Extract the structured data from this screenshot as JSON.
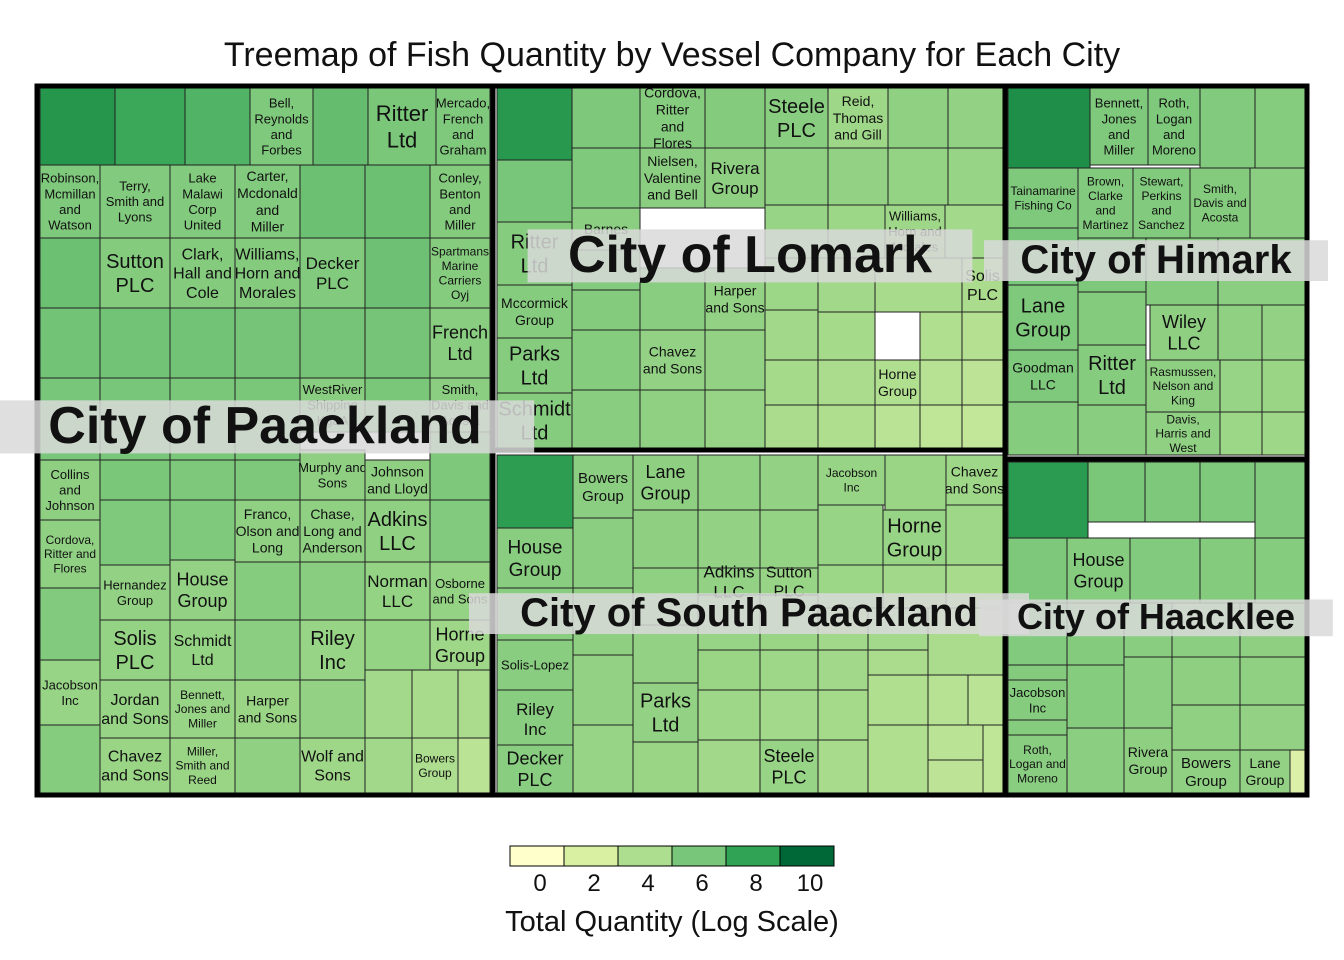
{
  "chart_data": {
    "type": "treemap",
    "title": "Treemap of Fish Quantity by Vessel Company for Each City",
    "legend": {
      "title": "Total Quantity (Log Scale)",
      "ticks": [
        "0",
        "2",
        "4",
        "6",
        "8",
        "10"
      ],
      "position": "bottom",
      "colors": [
        "#ffffcc",
        "#d9f0a3",
        "#addd8e",
        "#78c679",
        "#31a354",
        "#006837"
      ]
    },
    "cities": [
      {
        "name": "City of Paackland",
        "labeled_companies": [
          {
            "name": "Bell, Reynolds and Forbes",
            "log_qty": 6.3
          },
          {
            "name": "Ritter Ltd",
            "log_qty": 6.5
          },
          {
            "name": "Mercado, French and Graham",
            "log_qty": 6.3
          },
          {
            "name": "Robinson, Mcmillan and Watson",
            "log_qty": 6.3
          },
          {
            "name": "Terry, Smith and Lyons",
            "log_qty": 6.2
          },
          {
            "name": "Lake Malawi Corp United",
            "log_qty": 6.2
          },
          {
            "name": "Carter, Mcdonald and Miller",
            "log_qty": 6.2
          },
          {
            "name": "Conley, Benton and Miller",
            "log_qty": 6.1
          },
          {
            "name": "Sutton PLC",
            "log_qty": 6.1
          },
          {
            "name": "Clark, Hall and Cole",
            "log_qty": 6.1
          },
          {
            "name": "Williams, Horn and Morales",
            "log_qty": 6.1
          },
          {
            "name": "Decker PLC",
            "log_qty": 6.2
          },
          {
            "name": "Spartmans Marine Carriers Oyj",
            "log_qty": 6.0
          },
          {
            "name": "French Ltd",
            "log_qty": 5.9
          },
          {
            "name": "WestRiver Shipping KgaA",
            "log_qty": 5.9
          },
          {
            "name": "Smith, Davis and Acosta",
            "log_qty": 5.8
          },
          {
            "name": "Collins and Johnson",
            "log_qty": 5.7
          },
          {
            "name": "Murphy and Sons",
            "log_qty": 5.7
          },
          {
            "name": "Johnson and Lloyd",
            "log_qty": 5.7
          },
          {
            "name": "Franco, Olson and Long",
            "log_qty": 5.6
          },
          {
            "name": "Chase, Long and Anderson",
            "log_qty": 5.6
          },
          {
            "name": "Adkins LLC",
            "log_qty": 5.6
          },
          {
            "name": "Cordova, Ritter and Flores",
            "log_qty": 5.6
          },
          {
            "name": "Hernandez Group",
            "log_qty": 5.5
          },
          {
            "name": "House Group",
            "log_qty": 5.5
          },
          {
            "name": "Norman LLC",
            "log_qty": 5.4
          },
          {
            "name": "Osborne and Sons",
            "log_qty": 5.4
          },
          {
            "name": "Solis PLC",
            "log_qty": 5.4
          },
          {
            "name": "Schmidt Ltd",
            "log_qty": 5.4
          },
          {
            "name": "Riley Inc",
            "log_qty": 5.3
          },
          {
            "name": "Horne Group",
            "log_qty": 5.0
          },
          {
            "name": "Jacobson Inc",
            "log_qty": 5.3
          },
          {
            "name": "Jordan and Sons",
            "log_qty": 5.3
          },
          {
            "name": "Bennett, Jones and Miller",
            "log_qty": 5.3
          },
          {
            "name": "Harper and Sons",
            "log_qty": 5.2
          },
          {
            "name": "Chavez and Sons",
            "log_qty": 5.2
          },
          {
            "name": "Miller, Smith and Reed",
            "log_qty": 5.2
          },
          {
            "name": "Wolf and Sons",
            "log_qty": 5.0
          },
          {
            "name": "Bowers Group",
            "log_qty": 4.4
          }
        ]
      },
      {
        "name": "City of Lomark",
        "labeled_companies": [
          {
            "name": "Cordova, Ritter and Flores",
            "log_qty": 6.0
          },
          {
            "name": "Steele PLC",
            "log_qty": 5.9
          },
          {
            "name": "Reid, Thomas and Gill",
            "log_qty": 5.0
          },
          {
            "name": "Nielsen, Valentine and Bell",
            "log_qty": 5.8
          },
          {
            "name": "Rivera Group",
            "log_qty": 5.7
          },
          {
            "name": "Barnes",
            "log_qty": 5.8
          },
          {
            "name": "Williams, Horn and Morales",
            "log_qty": 5.0
          },
          {
            "name": "Ritter Ltd",
            "log_qty": 6.0
          },
          {
            "name": "Solis PLC",
            "log_qty": 4.5
          },
          {
            "name": "Mccormick Group",
            "log_qty": 6.0
          },
          {
            "name": "Harper and Sons",
            "log_qty": 5.5
          },
          {
            "name": "Parks Ltd",
            "log_qty": 6.0
          },
          {
            "name": "Chavez and Sons",
            "log_qty": 5.5
          },
          {
            "name": "Horne Group",
            "log_qty": 4.2
          },
          {
            "name": "Schmidt Ltd",
            "log_qty": 6.0
          }
        ]
      },
      {
        "name": "City of South Paackland",
        "labeled_companies": [
          {
            "name": "Bowers Group",
            "log_qty": 5.8
          },
          {
            "name": "Lane Group",
            "log_qty": 5.7
          },
          {
            "name": "Jacobson Inc",
            "log_qty": 5.3
          },
          {
            "name": "Chavez and Sons",
            "log_qty": 5.0
          },
          {
            "name": "House Group",
            "log_qty": 5.9
          },
          {
            "name": "Horne Group",
            "log_qty": 5.3
          },
          {
            "name": "Adkins LLC",
            "log_qty": 5.5
          },
          {
            "name": "Sutton PLC",
            "log_qty": 5.3
          },
          {
            "name": "Solis-Lopez",
            "log_qty": 5.9
          },
          {
            "name": "Riley Inc",
            "log_qty": 5.9
          },
          {
            "name": "Parks Ltd",
            "log_qty": 5.5
          },
          {
            "name": "Decker PLC",
            "log_qty": 5.9
          },
          {
            "name": "Steele PLC",
            "log_qty": 5.3
          }
        ]
      },
      {
        "name": "City of Himark",
        "labeled_companies": [
          {
            "name": "Bennett, Jones and Miller",
            "log_qty": 6.3
          },
          {
            "name": "Roth, Logan and Moreno",
            "log_qty": 6.3
          },
          {
            "name": "Tainamarine Fishing Co",
            "log_qty": 6.3
          },
          {
            "name": "Brown, Clarke and Martinez",
            "log_qty": 6.2
          },
          {
            "name": "Stewart, Perkins and Sanchez",
            "log_qty": 6.2
          },
          {
            "name": "Smith, Davis and Acosta",
            "log_qty": 6.1
          },
          {
            "name": "Lane Group",
            "log_qty": 6.3
          },
          {
            "name": "Wiley LLC",
            "log_qty": 5.7
          },
          {
            "name": "Goodman LLC",
            "log_qty": 6.3
          },
          {
            "name": "Ritter Ltd",
            "log_qty": 6.0
          },
          {
            "name": "Rasmussen, Nelson and King",
            "log_qty": 5.7
          },
          {
            "name": "Davis, Harris and West",
            "log_qty": 5.6
          }
        ]
      },
      {
        "name": "City of Haacklee",
        "labeled_companies": [
          {
            "name": "House Group",
            "log_qty": 6.0
          },
          {
            "name": "Jacobson Inc",
            "log_qty": 6.0
          },
          {
            "name": "Roth, Logan and Moreno",
            "log_qty": 5.9
          },
          {
            "name": "Rivera Group",
            "log_qty": 5.7
          },
          {
            "name": "Bowers Group",
            "log_qty": 5.6
          },
          {
            "name": "Lane Group",
            "log_qty": 5.5
          }
        ]
      }
    ]
  }
}
